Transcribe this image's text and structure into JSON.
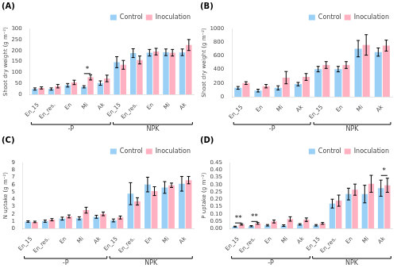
{
  "chart_data": [
    {
      "type": "bar",
      "title": "(A)",
      "y_label": "Shoot dry weight (g m⁻²)",
      "categories": [
        "En_15",
        "En_res.",
        "En",
        "Mi",
        "Ak",
        "En_15",
        "En_res.",
        "En",
        "Mi",
        "Ak"
      ],
      "category_groups": [
        {
          "label": "-P",
          "count": 5
        },
        {
          "label": "NPK",
          "count": 5
        }
      ],
      "series": [
        {
          "name": "Control",
          "values": [
            25,
            25,
            42,
            35,
            52,
            147,
            188,
            190,
            192,
            192
          ],
          "errors": [
            5,
            5,
            8,
            5,
            10,
            25,
            20,
            15,
            15,
            15
          ]
        },
        {
          "name": "Inoculation",
          "values": [
            30,
            38,
            55,
            78,
            73,
            135,
            157,
            195,
            190,
            225
          ],
          "errors": [
            5,
            8,
            10,
            12,
            15,
            20,
            18,
            15,
            15,
            25
          ]
        }
      ],
      "annotations": [
        {
          "text": "*",
          "index": 3,
          "y": 95
        }
      ],
      "ylim": [
        0,
        300
      ],
      "yticks": [
        0,
        50,
        100,
        150,
        200,
        250,
        300
      ],
      "grid": false,
      "legend": "upper right"
    },
    {
      "type": "bar",
      "title": "(B)",
      "y_label": "Shoot dry weight (g m⁻²)",
      "categories": [
        "En_15",
        "En",
        "Mi",
        "Ak",
        "En_15",
        "En",
        "Mi",
        "Ak"
      ],
      "category_groups": [
        {
          "label": "-P",
          "count": 4
        },
        {
          "label": "NPK",
          "count": 4
        }
      ],
      "series": [
        {
          "name": "Control",
          "values": [
            130,
            90,
            130,
            185,
            405,
            405,
            705,
            655
          ],
          "errors": [
            20,
            20,
            30,
            25,
            40,
            40,
            120,
            60
          ]
        },
        {
          "name": "Inoculation",
          "values": [
            200,
            155,
            280,
            290,
            465,
            465,
            760,
            750
          ],
          "errors": [
            20,
            25,
            90,
            50,
            50,
            50,
            150,
            80
          ]
        }
      ],
      "annotations": [],
      "ylim": [
        0,
        1000
      ],
      "yticks": [
        0,
        200,
        400,
        600,
        800,
        1000
      ],
      "grid": false,
      "legend": "upper right"
    },
    {
      "type": "bar",
      "title": "(C)",
      "y_label": "N uptake (g m⁻²)",
      "categories": [
        "En_15",
        "En_res.",
        "En",
        "Mi",
        "Ak",
        "En_15",
        "En_res.",
        "En",
        "Mi",
        "Ak"
      ],
      "category_groups": [
        {
          "label": "-P",
          "count": 5
        },
        {
          "label": "NPK",
          "count": 5
        }
      ],
      "series": [
        {
          "name": "Control",
          "values": [
            0.95,
            1.0,
            1.35,
            1.4,
            1.6,
            1.1,
            4.75,
            6.0,
            5.6,
            6.1
          ],
          "errors": [
            0.1,
            0.15,
            0.2,
            0.2,
            0.2,
            0.2,
            1.5,
            1.0,
            0.8,
            1.0
          ]
        },
        {
          "name": "Inoculation",
          "values": [
            0.9,
            1.2,
            1.65,
            2.5,
            2.0,
            1.5,
            3.7,
            5.1,
            5.9,
            6.6
          ],
          "errors": [
            0.1,
            0.15,
            0.2,
            0.4,
            0.25,
            0.2,
            0.5,
            0.6,
            0.3,
            0.5
          ]
        }
      ],
      "annotations": [],
      "ylim": [
        0,
        9
      ],
      "yticks": [
        0,
        1,
        2,
        3,
        4,
        5,
        6,
        7,
        8,
        9
      ],
      "grid": false,
      "legend": "upper right"
    },
    {
      "type": "bar",
      "title": "(D)",
      "y_label": "P uptake (g m⁻²)",
      "categories": [
        "En_15",
        "En_res.",
        "En",
        "Mi",
        "Ak",
        "En_15",
        "En_res.",
        "En",
        "Mi",
        "Ak"
      ],
      "category_groups": [
        {
          "label": "-P",
          "count": 5
        },
        {
          "label": "NPK",
          "count": 5
        }
      ],
      "series": [
        {
          "name": "Control",
          "values": [
            0.013,
            0.016,
            0.022,
            0.02,
            0.028,
            0.022,
            0.17,
            0.235,
            0.235,
            0.275
          ],
          "errors": [
            0.003,
            0.004,
            0.005,
            0.005,
            0.005,
            0.005,
            0.03,
            0.04,
            0.06,
            0.055
          ]
        },
        {
          "name": "Inoculation",
          "values": [
            0.028,
            0.035,
            0.048,
            0.065,
            0.06,
            0.035,
            0.19,
            0.265,
            0.305,
            0.295
          ],
          "errors": [
            0.005,
            0.006,
            0.01,
            0.015,
            0.012,
            0.006,
            0.038,
            0.038,
            0.058,
            0.048
          ]
        }
      ],
      "annotations": [
        {
          "text": "**",
          "index": 0,
          "y": 0.038
        },
        {
          "text": "**",
          "index": 1,
          "y": 0.048
        },
        {
          "text": "*",
          "index": 9,
          "y": 0.362
        }
      ],
      "ylim": [
        0,
        0.45
      ],
      "yticks": [
        {
          "value": 0.0,
          "label": "0.00"
        },
        {
          "value": 0.05,
          "label": "0.05"
        },
        {
          "value": 0.1,
          "label": "0.10"
        },
        {
          "value": 0.15,
          "label": "0.15"
        },
        {
          "value": 0.2,
          "label": "0.20"
        },
        {
          "value": 0.25,
          "label": "0.25"
        },
        {
          "value": 0.3,
          "label": "0.30"
        },
        {
          "value": 0.35,
          "label": "0.35"
        },
        {
          "value": 0.4,
          "label": "0.40"
        },
        {
          "value": 0.45,
          "label": "0.45"
        }
      ],
      "grid": false,
      "legend": "upper right"
    }
  ]
}
